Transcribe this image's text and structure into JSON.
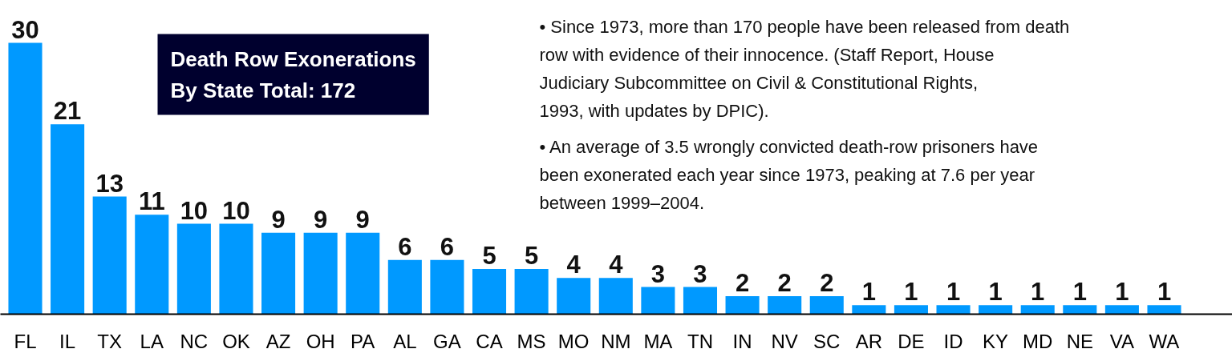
{
  "chart_data": {
    "type": "bar",
    "title": "Death Row Exonerations\nBy State Total: 172",
    "categories": [
      "FL",
      "IL",
      "TX",
      "LA",
      "NC",
      "OK",
      "AZ",
      "OH",
      "PA",
      "AL",
      "GA",
      "CA",
      "MS",
      "MO",
      "NM",
      "MA",
      "TN",
      "IN",
      "NV",
      "SC",
      "AR",
      "DE",
      "ID",
      "KY",
      "MD",
      "NE",
      "VA",
      "WA"
    ],
    "values": [
      30,
      21,
      13,
      11,
      10,
      10,
      9,
      9,
      9,
      6,
      6,
      5,
      5,
      4,
      4,
      3,
      3,
      2,
      2,
      2,
      1,
      1,
      1,
      1,
      1,
      1,
      1,
      1
    ],
    "color": "#0099ff",
    "data_labels": true,
    "annotations": [
      "• Since 1973, more than 170 people have been released from death row with evidence of their innocence. (Staff Report, House Judiciary Subcommittee on Civil & Constitutional Rights, 1993, with updates by DPIC).",
      "•  An average of 3.5 wrongly convicted death-row prisoners have been exonerated each year since 1973, peaking at 7.6 per year between 1999–2004."
    ]
  }
}
